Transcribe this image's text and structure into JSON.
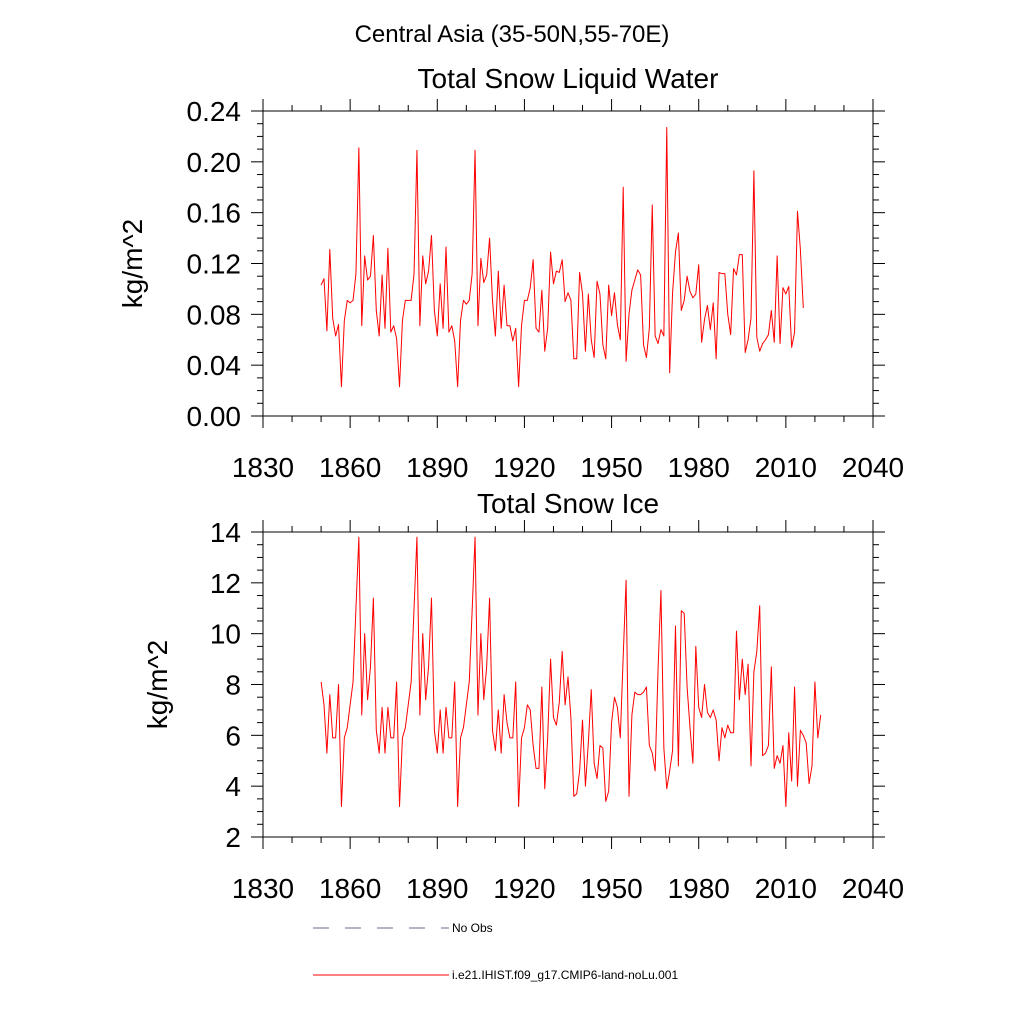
{
  "page": {
    "main_title": "Central Asia (35-50N,55-70E)"
  },
  "chart_data": [
    {
      "type": "line",
      "title": "Total Snow Liquid Water",
      "xlabel": "",
      "ylabel": "kg/m^2",
      "xlim": [
        1830,
        2040
      ],
      "ylim": [
        0.0,
        0.24
      ],
      "xticks": [
        1830,
        1860,
        1890,
        1920,
        1950,
        1980,
        2010,
        2040
      ],
      "yticks": [
        0.0,
        0.04,
        0.08,
        0.12,
        0.16,
        0.2,
        0.24
      ],
      "ytick_labels": [
        "0.00",
        "0.04",
        "0.08",
        "0.12",
        "0.16",
        "0.20",
        "0.24"
      ],
      "grid": false,
      "series": [
        {
          "name": "i.e21.IHIST.f09_g17.CMIP6-land-noLu.001",
          "color": "#ff0000",
          "x_start": 1850,
          "x_step": 1,
          "values": [
            0.103,
            0.108,
            0.067,
            0.131,
            0.077,
            0.063,
            0.072,
            0.023,
            0.075,
            0.091,
            0.089,
            0.091,
            0.112,
            0.211,
            0.071,
            0.126,
            0.107,
            0.11,
            0.142,
            0.083,
            0.063,
            0.111,
            0.069,
            0.132,
            0.066,
            0.071,
            0.061,
            0.023,
            0.075,
            0.091,
            0.091,
            0.091,
            0.112,
            0.209,
            0.071,
            0.126,
            0.104,
            0.114,
            0.142,
            0.083,
            0.063,
            0.104,
            0.069,
            0.133,
            0.066,
            0.071,
            0.059,
            0.023,
            0.075,
            0.091,
            0.088,
            0.091,
            0.112,
            0.209,
            0.071,
            0.124,
            0.105,
            0.111,
            0.14,
            0.091,
            0.063,
            0.114,
            0.069,
            0.103,
            0.071,
            0.071,
            0.059,
            0.069,
            0.023,
            0.071,
            0.091,
            0.091,
            0.101,
            0.123,
            0.069,
            0.066,
            0.099,
            0.051,
            0.069,
            0.129,
            0.104,
            0.114,
            0.113,
            0.123,
            0.09,
            0.097,
            0.091,
            0.045,
            0.045,
            0.113,
            0.096,
            0.051,
            0.096,
            0.06,
            0.046,
            0.106,
            0.096,
            0.056,
            0.045,
            0.103,
            0.079,
            0.097,
            0.072,
            0.06,
            0.18,
            0.043,
            0.08,
            0.099,
            0.107,
            0.115,
            0.111,
            0.056,
            0.046,
            0.069,
            0.166,
            0.063,
            0.057,
            0.068,
            0.063,
            0.227,
            0.034,
            0.097,
            0.129,
            0.144,
            0.083,
            0.091,
            0.11,
            0.098,
            0.093,
            0.096,
            0.119,
            0.058,
            0.076,
            0.087,
            0.068,
            0.089,
            0.045,
            0.113,
            0.112,
            0.112,
            0.08,
            0.064,
            0.116,
            0.111,
            0.127,
            0.127,
            0.05,
            0.06,
            0.077,
            0.193,
            0.062,
            0.051,
            0.057,
            0.06,
            0.064,
            0.083,
            0.058,
            0.126,
            0.057,
            0.101,
            0.096,
            0.102,
            0.054,
            0.066,
            0.161,
            0.131,
            0.085
          ]
        }
      ]
    },
    {
      "type": "line",
      "title": "Total Snow Ice",
      "xlabel": "",
      "ylabel": "kg/m^2",
      "xlim": [
        1830,
        2040
      ],
      "ylim": [
        2,
        14
      ],
      "xticks": [
        1830,
        1860,
        1890,
        1920,
        1950,
        1980,
        2010,
        2040
      ],
      "yticks": [
        2,
        4,
        6,
        8,
        10,
        12,
        14
      ],
      "ytick_labels": [
        "2",
        "4",
        "6",
        "8",
        "10",
        "12",
        "14"
      ],
      "grid": false,
      "series": [
        {
          "name": "i.e21.IHIST.f09_g17.CMIP6-land-noLu.001",
          "color": "#ff0000",
          "x_start": 1850,
          "x_step": 1,
          "values": [
            8.1,
            7.2,
            5.3,
            7.6,
            5.9,
            5.9,
            8.0,
            3.2,
            5.9,
            6.3,
            7.2,
            8.1,
            11.0,
            13.8,
            6.8,
            10.0,
            7.4,
            8.7,
            11.4,
            6.2,
            5.3,
            7.1,
            5.3,
            7.1,
            5.9,
            5.9,
            8.1,
            3.2,
            5.9,
            6.3,
            7.2,
            8.1,
            11.0,
            13.8,
            6.8,
            10.0,
            7.4,
            8.7,
            11.4,
            6.2,
            5.3,
            7.0,
            5.3,
            7.1,
            5.9,
            5.9,
            8.1,
            3.2,
            5.9,
            6.3,
            7.2,
            8.1,
            10.9,
            13.8,
            6.8,
            10.0,
            7.4,
            8.7,
            11.4,
            6.2,
            5.4,
            7.0,
            5.3,
            7.6,
            6.5,
            5.9,
            5.9,
            8.1,
            3.2,
            5.9,
            6.3,
            7.2,
            7.0,
            5.6,
            4.7,
            4.7,
            7.9,
            3.9,
            5.9,
            9.0,
            6.7,
            6.4,
            7.3,
            9.3,
            7.2,
            8.3,
            6.7,
            3.6,
            3.7,
            4.6,
            6.6,
            4.0,
            5.7,
            7.8,
            4.9,
            4.3,
            5.6,
            5.5,
            3.4,
            3.8,
            6.5,
            7.5,
            7.1,
            5.9,
            9.1,
            12.1,
            3.6,
            6.8,
            7.7,
            7.6,
            7.6,
            7.7,
            7.9,
            5.6,
            5.3,
            4.6,
            8.6,
            11.7,
            5.5,
            3.9,
            4.6,
            5.4,
            10.3,
            4.8,
            10.9,
            10.8,
            7.9,
            6.3,
            4.9,
            9.5,
            7.1,
            6.7,
            8.0,
            6.9,
            6.7,
            7.0,
            6.6,
            5.0,
            6.3,
            5.9,
            6.4,
            6.1,
            6.1,
            10.1,
            7.4,
            9.0,
            7.6,
            8.8,
            4.8,
            8.5,
            9.3,
            11.1,
            5.2,
            5.3,
            5.6,
            8.7,
            4.7,
            5.2,
            4.9,
            5.6,
            3.2,
            6.1,
            4.2,
            7.9,
            4.0,
            6.2,
            6.0,
            5.7,
            4.1,
            4.8,
            8.1,
            5.9,
            6.8
          ]
        }
      ]
    }
  ],
  "legend": {
    "items": [
      {
        "label": "No Obs",
        "style": "dashed",
        "color": "#6a6a8a"
      },
      {
        "label": "i.e21.IHIST.f09_g17.CMIP6-land-noLu.001",
        "style": "solid",
        "color": "#ff0000"
      }
    ]
  }
}
